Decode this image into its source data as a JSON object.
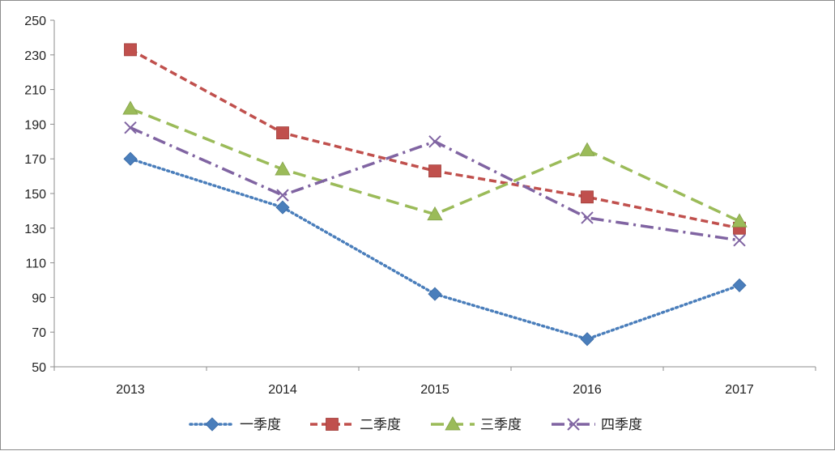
{
  "chart_data": {
    "type": "line",
    "title": "",
    "xlabel": "",
    "ylabel": "",
    "categories": [
      "2013",
      "2014",
      "2015",
      "2016",
      "2017"
    ],
    "ylim": [
      50,
      250
    ],
    "yticks": [
      "50",
      "70",
      "90",
      "110",
      "130",
      "150",
      "170",
      "190",
      "210",
      "230",
      "250"
    ],
    "grid": false,
    "legend_position": "bottom",
    "series": [
      {
        "name": "一季度",
        "values": [
          170,
          142,
          92,
          66,
          97
        ],
        "color": "#4a7ebb",
        "marker": "diamond",
        "line_style": "dotted"
      },
      {
        "name": "二季度",
        "values": [
          233,
          185,
          163,
          148,
          130
        ],
        "color": "#c0504d",
        "marker": "square",
        "line_style": "dashed"
      },
      {
        "name": "三季度",
        "values": [
          199,
          164,
          138,
          175,
          134
        ],
        "color": "#9bbb59",
        "marker": "triangle",
        "line_style": "long-dash"
      },
      {
        "name": "四季度",
        "values": [
          188,
          149,
          180,
          136,
          123
        ],
        "color": "#8064a2",
        "marker": "x",
        "line_style": "dash-dot"
      }
    ]
  }
}
